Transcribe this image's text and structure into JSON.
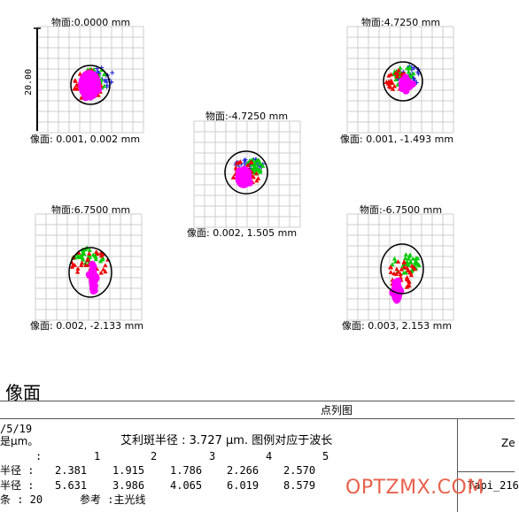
{
  "fields": [
    {
      "object": "物面:0.0000 mm",
      "image": "像面: 0.001, 0.002 mm",
      "scale_label": "20.00"
    },
    {
      "object": "物面:4.7250 mm",
      "image": "像面: 0.001, -1.493 mm"
    },
    {
      "object": "物面:-4.7250 mm",
      "image": "像面: 0.002, 1.505 mm"
    },
    {
      "object": "物面:6.7500 mm",
      "image": "像面: 0.002, -2.133 mm"
    },
    {
      "object": "物面:-6.7500 mm",
      "image": "像面: 0.003, 2.153 mm"
    }
  ],
  "section_title": "像面",
  "table": {
    "header": "点列图",
    "date": "/5/19",
    "units_note": "是μm。",
    "airy": "艾利斑半径 : 3.727 μm. 图例对应于波长",
    "field_numbers_label": ":",
    "field_numbers": [
      "1",
      "2",
      "3",
      "4",
      "5"
    ],
    "rms_label": "半径 :",
    "rms_values": [
      "2.381",
      "1.915",
      "1.786",
      "2.266",
      "2.570"
    ],
    "geo_label": "半径 :",
    "geo_values": [
      "5.631",
      "3.986",
      "4.065",
      "6.019",
      "8.579"
    ],
    "rays_label": "条 : 20",
    "reference": "参考  :主光线",
    "right_top": "Ze",
    "right_bottom": "Tapi_216"
  },
  "watermark": "OPTZMX.COM",
  "colors": {
    "blue": "#2222dd",
    "green": "#00cc00",
    "red": "#ee0000",
    "magenta": "#ff00ff",
    "grid": "#cccccc"
  }
}
